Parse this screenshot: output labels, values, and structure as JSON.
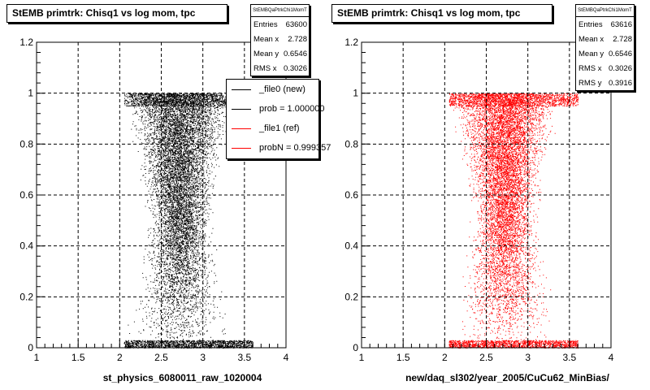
{
  "footer_text": "",
  "chart_data": [
    {
      "type": "scatter",
      "title": "StEMB primtrk: Chisq1 vs log mom, tpc",
      "xlabel": "st_physics_6080011_raw_1020004",
      "ylabel": "",
      "xlim": [
        1,
        4
      ],
      "ylim": [
        0,
        1.2
      ],
      "xticks": [
        "1",
        "1.5",
        "2",
        "2.5",
        "3",
        "3.5",
        "4"
      ],
      "yticks": [
        "0",
        "0.2",
        "0.4",
        "0.6",
        "0.8",
        "1",
        "1.2"
      ],
      "grid": true,
      "marker_color": "#000000",
      "x_range_populated": [
        2.0,
        3.5
      ],
      "y_range_populated": [
        0,
        1
      ],
      "stats": {
        "name": "StEMBQaPtrkChi1MomT",
        "rows": [
          {
            "label": "Entries",
            "value": "63600"
          },
          {
            "label": "Mean x",
            "value": "2.728"
          },
          {
            "label": "Mean y",
            "value": "0.6546"
          },
          {
            "label": "RMS x",
            "value": "0.3026"
          }
        ]
      },
      "legend": {
        "placement": "top-right",
        "entries": [
          {
            "label": "_file0 (new)",
            "color": "#000000"
          },
          {
            "label": "prob = 1.000000",
            "color": "#000000"
          },
          {
            "label": "_file1 (ref)",
            "color": "#ff0000"
          },
          {
            "label": "probN = 0.999357",
            "color": "#ff0000"
          }
        ]
      }
    },
    {
      "type": "scatter",
      "title": "StEMB primtrk: Chisq1 vs log mom, tpc",
      "xlabel": "new/daq_sl302/year_2005/CuCu62_MinBias/",
      "ylabel": "",
      "xlim": [
        1,
        4
      ],
      "ylim": [
        0,
        1.2
      ],
      "xticks": [
        "1",
        "1.5",
        "2",
        "2.5",
        "3",
        "3.5",
        "4"
      ],
      "yticks": [
        "0",
        "0.2",
        "0.4",
        "0.6",
        "0.8",
        "1",
        "1.2"
      ],
      "grid": true,
      "marker_color": "#ff0000",
      "x_range_populated": [
        2.0,
        3.5
      ],
      "y_range_populated": [
        0,
        1
      ],
      "stats": {
        "name": "StEMBQaPtrkChi1MomT",
        "rows": [
          {
            "label": "Entries",
            "value": "63616"
          },
          {
            "label": "Mean x",
            "value": "2.728"
          },
          {
            "label": "Mean y",
            "value": "0.6546"
          },
          {
            "label": "RMS x",
            "value": "0.3026"
          },
          {
            "label": "RMS y",
            "value": "0.3916"
          }
        ]
      }
    }
  ]
}
